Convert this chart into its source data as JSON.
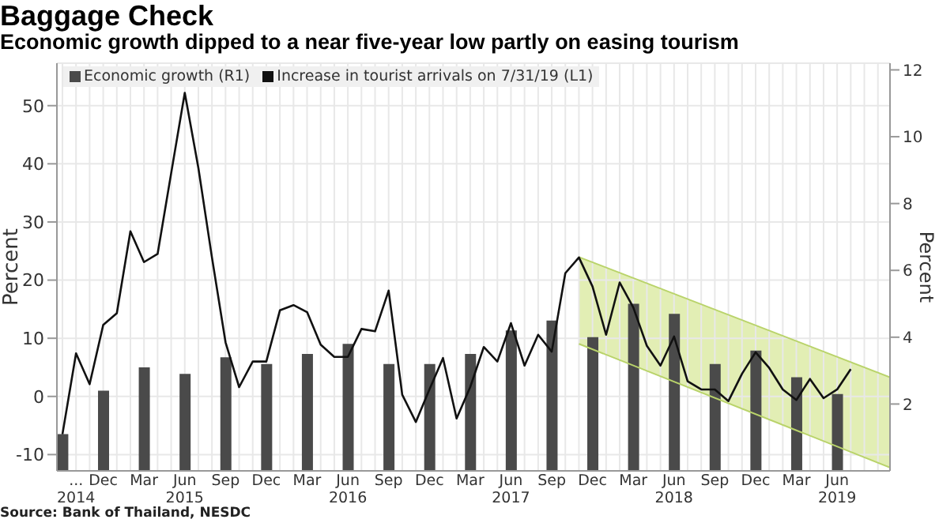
{
  "chart_data": {
    "type": "line",
    "title": "Baggage Check",
    "subtitle": "Economic growth dipped to a near five-year low partly on easing tourism",
    "ylabel": "Percent",
    "y2label": "Percent",
    "annotations": [
      "Source: Bank of Thailand, NESDC"
    ],
    "x": [
      "2014-09",
      "2014-10",
      "2014-11",
      "2014-12",
      "2015-01",
      "2015-02",
      "2015-03",
      "2015-04",
      "2015-05",
      "2015-06",
      "2015-07",
      "2015-08",
      "2015-09",
      "2015-10",
      "2015-11",
      "2015-12",
      "2016-01",
      "2016-02",
      "2016-03",
      "2016-04",
      "2016-05",
      "2016-06",
      "2016-07",
      "2016-08",
      "2016-09",
      "2016-10",
      "2016-11",
      "2016-12",
      "2017-01",
      "2017-02",
      "2017-03",
      "2017-04",
      "2017-05",
      "2017-06",
      "2017-07",
      "2017-08",
      "2017-09",
      "2017-10",
      "2017-11",
      "2017-12",
      "2018-01",
      "2018-02",
      "2018-03",
      "2018-04",
      "2018-05",
      "2018-06",
      "2018-07",
      "2018-08",
      "2018-09",
      "2018-10",
      "2018-11",
      "2018-12",
      "2019-01",
      "2019-02",
      "2019-03",
      "2019-04",
      "2019-05",
      "2019-06",
      "2019-07"
    ],
    "series": [
      {
        "type": "line",
        "axis": "y2",
        "color": "#b9d36a",
        "x": [
          "2017-11",
          "2019-09-28"
        ],
        "values": [
          6.4,
          2.8
        ]
      },
      {
        "type": "line",
        "axis": "y2",
        "color": "#b9d36a",
        "x": [
          "2017-11",
          "2019-09-28"
        ],
        "values": [
          3.8,
          0.1
        ]
      },
      {
        "type": "bar",
        "name": "Economic growth (R1)",
        "axis": "y2",
        "color": "#4a4a4a",
        "x": [
          "2014-09",
          "2014-12",
          "2015-03",
          "2015-06",
          "2015-09",
          "2015-12",
          "2016-03",
          "2016-06",
          "2016-09",
          "2016-12",
          "2017-03",
          "2017-06",
          "2017-09",
          "2017-12",
          "2018-03",
          "2018-06",
          "2018-09",
          "2018-12",
          "2019-03",
          "2019-06"
        ],
        "values": [
          1.1,
          2.4,
          3.1,
          2.9,
          3.4,
          3.2,
          3.5,
          3.8,
          3.2,
          3.2,
          3.5,
          4.2,
          4.5,
          4.0,
          5.0,
          4.7,
          3.2,
          3.6,
          2.8,
          2.3
        ]
      },
      {
        "name": "Increase in tourist arrivals on 7/31/19 (L1)",
        "color": "#111111",
        "values": [
          -6.5,
          7.4,
          2.1,
          12.3,
          14.3,
          28.4,
          23.1,
          24.5,
          38.4,
          52.2,
          39.3,
          23.9,
          9.3,
          1.6,
          6,
          6,
          14.8,
          15.7,
          14.5,
          8.9,
          6.8,
          6.8,
          11.6,
          11.2,
          18.2,
          0.3,
          -4.4,
          1.2,
          6.6,
          -3.8,
          1.6,
          8.5,
          6.0,
          12.6,
          5.3,
          10.6,
          7.7,
          21.2,
          23.9,
          18.9,
          10.6,
          19.6,
          15.3,
          8.7,
          5.3,
          10.3,
          2.6,
          1.2,
          1.2,
          -0.8,
          3.9,
          7.6,
          4.9,
          1.2,
          -0.6,
          3.0,
          -0.3,
          1.2,
          4.7
        ]
      }
    ],
    "xlim": [
      "2014-08-19",
      "2019-09-28"
    ],
    "xticks": [
      {
        "value": "2014-09",
        "label": null
      },
      {
        "value": "2014-10",
        "label": "...\n2014"
      },
      {
        "value": "2014-11",
        "label": null
      },
      {
        "value": "2014-12",
        "label": "Dec"
      },
      {
        "value": "2015-01",
        "label": null
      },
      {
        "value": "2015-02",
        "label": null
      },
      {
        "value": "2015-03",
        "label": "Mar"
      },
      {
        "value": "2015-04",
        "label": null
      },
      {
        "value": "2015-05",
        "label": null
      },
      {
        "value": "2015-06",
        "label": "Jun\n2015"
      },
      {
        "value": "2015-07",
        "label": null
      },
      {
        "value": "2015-08",
        "label": null
      },
      {
        "value": "2015-09",
        "label": "Sep"
      },
      {
        "value": "2015-10",
        "label": null
      },
      {
        "value": "2015-11",
        "label": null
      },
      {
        "value": "2015-12",
        "label": "Dec"
      },
      {
        "value": "2016-01",
        "label": null
      },
      {
        "value": "2016-02",
        "label": null
      },
      {
        "value": "2016-03",
        "label": "Mar"
      },
      {
        "value": "2016-04",
        "label": null
      },
      {
        "value": "2016-05",
        "label": null
      },
      {
        "value": "2016-06",
        "label": "Jun\n2016"
      },
      {
        "value": "2016-07",
        "label": null
      },
      {
        "value": "2016-08",
        "label": null
      },
      {
        "value": "2016-09",
        "label": "Sep"
      },
      {
        "value": "2016-10",
        "label": null
      },
      {
        "value": "2016-11",
        "label": null
      },
      {
        "value": "2016-12",
        "label": "Dec"
      },
      {
        "value": "2017-01",
        "label": null
      },
      {
        "value": "2017-02",
        "label": null
      },
      {
        "value": "2017-03",
        "label": "Mar"
      },
      {
        "value": "2017-04",
        "label": null
      },
      {
        "value": "2017-05",
        "label": null
      },
      {
        "value": "2017-06",
        "label": "Jun\n2017"
      },
      {
        "value": "2017-07",
        "label": null
      },
      {
        "value": "2017-08",
        "label": null
      },
      {
        "value": "2017-09",
        "label": "Sep"
      },
      {
        "value": "2017-10",
        "label": null
      },
      {
        "value": "2017-11",
        "label": null
      },
      {
        "value": "2017-12",
        "label": "Dec"
      },
      {
        "value": "2018-01",
        "label": null
      },
      {
        "value": "2018-02",
        "label": null
      },
      {
        "value": "2018-03",
        "label": "Mar"
      },
      {
        "value": "2018-04",
        "label": null
      },
      {
        "value": "2018-05",
        "label": null
      },
      {
        "value": "2018-06",
        "label": "Jun\n2018"
      },
      {
        "value": "2018-07",
        "label": null
      },
      {
        "value": "2018-08",
        "label": null
      },
      {
        "value": "2018-09",
        "label": "Sep"
      },
      {
        "value": "2018-10",
        "label": null
      },
      {
        "value": "2018-11",
        "label": null
      },
      {
        "value": "2018-12",
        "label": "Dec"
      },
      {
        "value": "2019-01",
        "label": null
      },
      {
        "value": "2019-02",
        "label": null
      },
      {
        "value": "2019-03",
        "label": "Mar"
      },
      {
        "value": "2019-04",
        "label": null
      },
      {
        "value": "2019-05",
        "label": null
      },
      {
        "value": "2019-06",
        "label": "Jun\n2019"
      },
      {
        "value": "2019-07",
        "label": null
      },
      {
        "value": "2019-08",
        "label": null
      },
      {
        "value": "2019-09",
        "label": null
      }
    ],
    "ylim": [
      -12.8,
      57.3
    ],
    "yticks": [
      -10,
      0,
      10,
      20,
      30,
      40,
      50
    ],
    "y2lim": [
      0,
      12.2
    ],
    "y2ticks": [
      2,
      4,
      6,
      8,
      10,
      12
    ],
    "grid": true,
    "legend": "top left",
    "marker": "none",
    "line_style": "solid"
  }
}
